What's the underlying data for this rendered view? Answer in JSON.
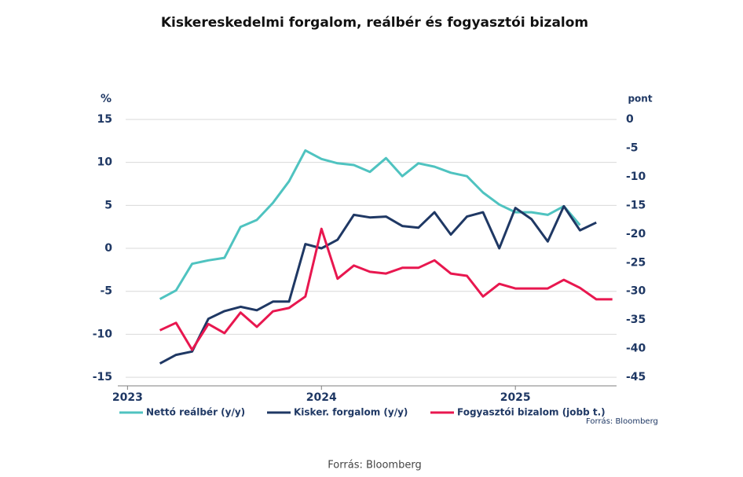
{
  "chart_data": {
    "type": "line",
    "title": "Kiskereskedelmi forgalom, reálbér és fogyasztói bizalom",
    "y_label": "%",
    "y2_label": "pont",
    "source": "Forrás: Bloomberg",
    "caption": "Forrás: Bloomberg",
    "x": [
      2023.167,
      2023.25,
      2023.333,
      2023.417,
      2023.5,
      2023.583,
      2023.667,
      2023.75,
      2023.833,
      2023.917,
      2024,
      2024.083,
      2024.167,
      2024.25,
      2024.333,
      2024.417,
      2024.5,
      2024.583,
      2024.667,
      2024.75,
      2024.833,
      2024.917,
      2025,
      2025.083,
      2025.167,
      2025.25,
      2025.333,
      2025.417,
      2025.5
    ],
    "xlim": [
      2022.95,
      2025.55
    ],
    "xticks": [
      2023,
      2024,
      2025
    ],
    "ylim": [
      -16,
      15
    ],
    "yticks": [
      -15,
      -10,
      -5,
      0,
      5,
      10,
      15
    ],
    "y2lim": [
      -46.5,
      0
    ],
    "y2ticks": [
      -45,
      -40,
      -35,
      -30,
      -25,
      -20,
      -15,
      -10,
      -5,
      0
    ],
    "grid": true,
    "series": [
      {
        "name": "Nettó reálbér (y/y)",
        "color": "#4fc3c0",
        "values": [
          -5.9,
          -4.9,
          -1.8,
          -1.4,
          -1.1,
          2.5,
          3.3,
          5.3,
          7.8,
          11.4,
          10.4,
          9.9,
          9.7,
          8.9,
          10.5,
          8.4,
          9.9,
          9.5,
          8.8,
          8.4,
          6.5,
          5.1,
          4.2,
          4.2,
          3.9,
          4.9,
          2.7,
          null,
          null
        ]
      },
      {
        "name": "Kisker. forgalom (y/y)",
        "color": "#1f3864",
        "values": [
          -13.4,
          -12.4,
          -12.0,
          -8.2,
          -7.3,
          -6.8,
          -7.2,
          -6.2,
          -6.2,
          0.5,
          0,
          1.0,
          3.9,
          3.6,
          3.7,
          2.6,
          2.4,
          4.2,
          1.6,
          3.7,
          4.2,
          0,
          4.7,
          3.4,
          0.8,
          4.9,
          2.1,
          3.0,
          null
        ]
      },
      {
        "name": "Fogyasztói bizalom (jobb t.)",
        "color": "#e8174f",
        "axis": "y2",
        "values": [
          -36.8,
          -35.5,
          -40.2,
          -35.7,
          -37.3,
          -33.7,
          -36.2,
          -33.5,
          -32.9,
          -30.9,
          -19.1,
          -27.8,
          -25.5,
          -26.6,
          -26.9,
          -25.9,
          -25.9,
          -24.6,
          -26.9,
          -27.3,
          -30.9,
          -28.7,
          -29.5,
          -29.5,
          -29.5,
          -28.0,
          -29.4,
          -31.4,
          -31.4
        ]
      }
    ]
  }
}
